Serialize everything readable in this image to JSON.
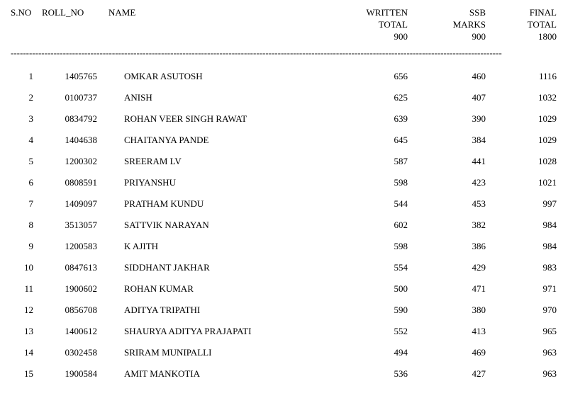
{
  "columns": {
    "sno": "S.NO",
    "rollno": "ROLL_NO",
    "name": "NAME",
    "written_line1": "WRITTEN",
    "written_line2": "TOTAL",
    "written_line3": "900",
    "ssb_line1": "SSB",
    "ssb_line2": "MARKS",
    "ssb_line3": "900",
    "final_line1": "FINAL",
    "final_line2": "TOTAL",
    "final_line3": "1800"
  },
  "rows": [
    {
      "sno": "1",
      "rollno": "1405765",
      "name": "OMKAR ASUTOSH",
      "written": "656",
      "ssb": "460",
      "final": "1116"
    },
    {
      "sno": "2",
      "rollno": "0100737",
      "name": "ANISH",
      "written": "625",
      "ssb": "407",
      "final": "1032"
    },
    {
      "sno": "3",
      "rollno": "0834792",
      "name": "ROHAN VEER SINGH RAWAT",
      "written": "639",
      "ssb": "390",
      "final": "1029"
    },
    {
      "sno": "4",
      "rollno": "1404638",
      "name": "CHAITANYA PANDE",
      "written": "645",
      "ssb": "384",
      "final": "1029"
    },
    {
      "sno": "5",
      "rollno": "1200302",
      "name": "SREERAM LV",
      "written": "587",
      "ssb": "441",
      "final": "1028"
    },
    {
      "sno": "6",
      "rollno": "0808591",
      "name": "PRIYANSHU",
      "written": "598",
      "ssb": "423",
      "final": "1021"
    },
    {
      "sno": "7",
      "rollno": "1409097",
      "name": "PRATHAM KUNDU",
      "written": "544",
      "ssb": "453",
      "final": "997"
    },
    {
      "sno": "8",
      "rollno": "3513057",
      "name": "SATTVIK NARAYAN",
      "written": "602",
      "ssb": "382",
      "final": "984"
    },
    {
      "sno": "9",
      "rollno": "1200583",
      "name": "K AJITH",
      "written": "598",
      "ssb": "386",
      "final": "984"
    },
    {
      "sno": "10",
      "rollno": "0847613",
      "name": "SIDDHANT JAKHAR",
      "written": "554",
      "ssb": "429",
      "final": "983"
    },
    {
      "sno": "11",
      "rollno": "1900602",
      "name": "ROHAN KUMAR",
      "written": "500",
      "ssb": "471",
      "final": "971"
    },
    {
      "sno": "12",
      "rollno": "0856708",
      "name": "ADITYA TRIPATHI",
      "written": "590",
      "ssb": "380",
      "final": "970"
    },
    {
      "sno": "13",
      "rollno": "1400612",
      "name": "SHAURYA ADITYA PRAJAPATI",
      "written": "552",
      "ssb": "413",
      "final": "965"
    },
    {
      "sno": "14",
      "rollno": "0302458",
      "name": "SRIRAM MUNIPALLI",
      "written": "494",
      "ssb": "469",
      "final": "963"
    },
    {
      "sno": "15",
      "rollno": "1900584",
      "name": "AMIT MANKOTIA",
      "written": "536",
      "ssb": "427",
      "final": "963"
    }
  ],
  "divider_text": "----------------------------------------------------------------------------------------------------------------------------------------------------------------"
}
